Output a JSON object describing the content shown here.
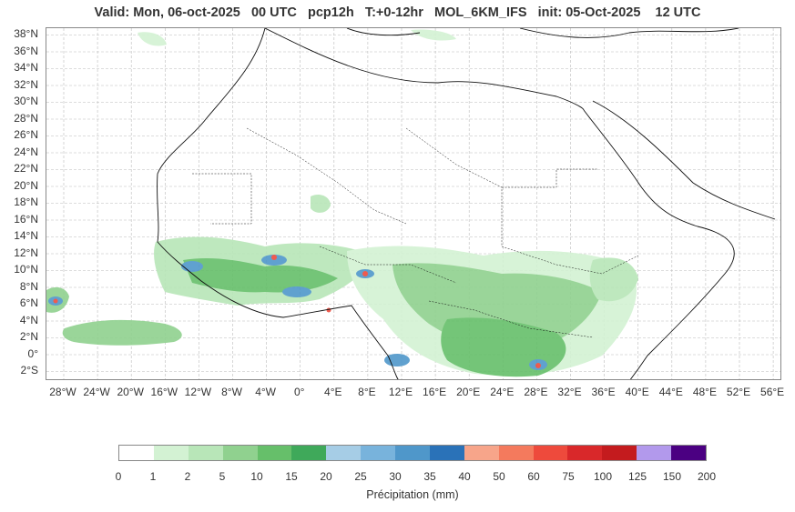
{
  "title": "Valid: Mon, 06-oct-2025   00 UTC   pcp12h   T:+0-12hr   MOL_6KM_IFS   init: 05-Oct-2025    12 UTC",
  "lat_labels": [
    "38°N",
    "36°N",
    "34°N",
    "32°N",
    "30°N",
    "28°N",
    "26°N",
    "24°N",
    "22°N",
    "20°N",
    "18°N",
    "16°N",
    "14°N",
    "12°N",
    "10°N",
    "8°N",
    "6°N",
    "4°N",
    "2°N",
    "0°",
    "2°S"
  ],
  "lon_labels": [
    "28°W",
    "24°W",
    "20°W",
    "16°W",
    "12°W",
    "8°W",
    "4°W",
    "0°",
    "4°E",
    "8°E",
    "12°E",
    "16°E",
    "20°E",
    "24°E",
    "28°E",
    "32°E",
    "36°E",
    "40°E",
    "44°E",
    "48°E",
    "52°E",
    "56°E"
  ],
  "colorbar": {
    "label": "Précipitation (mm)",
    "ticks": [
      "0",
      "1",
      "2",
      "5",
      "10",
      "15",
      "20",
      "25",
      "30",
      "35",
      "40",
      "50",
      "60",
      "75",
      "100",
      "125",
      "150",
      "200"
    ],
    "colors": [
      "#ffffff",
      "#d3f2d3",
      "#b8e6b8",
      "#90d18f",
      "#66bf6a",
      "#3fa95a",
      "#a6cde6",
      "#78b3dc",
      "#4f97ca",
      "#2a72b8",
      "#f7a58a",
      "#f47a5d",
      "#ee4a3c",
      "#d9282a",
      "#c41b1e",
      "#b299ec",
      "#4b0082"
    ]
  }
}
